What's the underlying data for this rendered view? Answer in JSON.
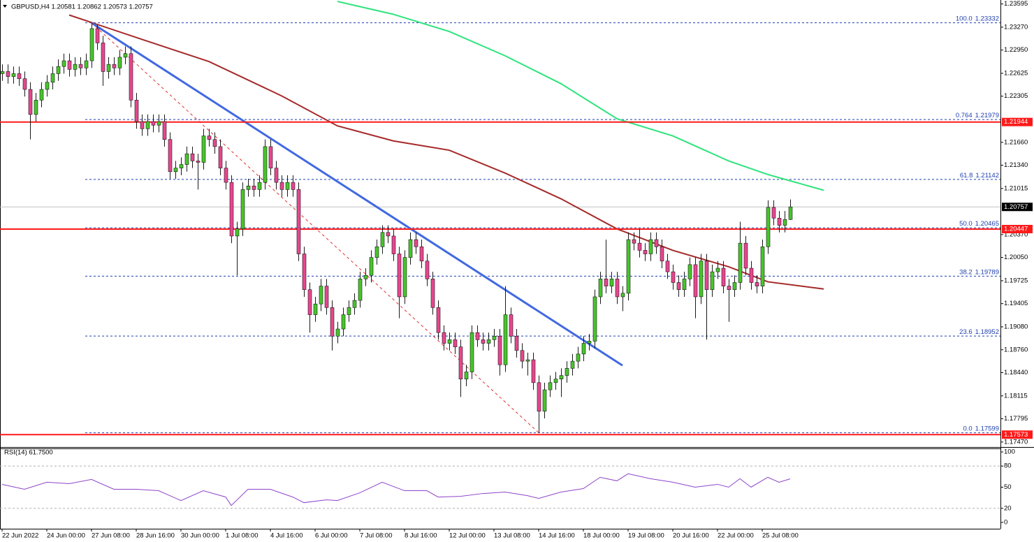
{
  "chart_data": [
    {
      "type": "candlestick",
      "title": "GBPUSD,H4  1.20581 1.20862 1.20573 1.20757",
      "up_color": "#47c52a",
      "down_color": "#e8468f",
      "ylim": [
        1.174,
        1.2365
      ],
      "yticks": [
        1.23595,
        {
          "value": 1.2327,
          "label": "1.23270"
        },
        {
          "value": 1.2295,
          "label": "1.22950"
        },
        1.22625,
        1.22305,
        {
          "value": 1.2166,
          "label": "1.21660"
        },
        {
          "value": 1.2134,
          "label": "1.21340"
        },
        1.21015,
        {
          "value": 1.2037,
          "label": "1.20370"
        },
        {
          "value": 1.2005,
          "label": "1.20050"
        },
        1.19725,
        1.19405,
        {
          "value": 1.1908,
          "label": "1.19080"
        },
        {
          "value": 1.1876,
          "label": "1.18760"
        },
        {
          "value": 1.1844,
          "label": "1.18440"
        },
        1.18115,
        1.17795,
        {
          "value": 1.1747,
          "label": "1.17470"
        }
      ],
      "open": [
        1.2262,
        1.2265,
        1.2258,
        1.2262,
        1.2255,
        1.224,
        1.2205,
        1.2225,
        1.224,
        1.225,
        1.2262,
        1.2272,
        1.228,
        1.2268,
        1.2275,
        1.227,
        1.228,
        1.2325,
        1.2305,
        1.2265,
        1.2275,
        1.227,
        1.2285,
        1.229,
        1.2225,
        1.2195,
        1.2185,
        1.2195,
        1.219,
        1.2195,
        1.217,
        1.2125,
        1.213,
        1.2135,
        1.215,
        1.214,
        1.2138,
        1.2175,
        1.217,
        1.216,
        1.213,
        1.211,
        1.2035,
        1.2045,
        1.21,
        1.2105,
        1.21,
        1.211,
        1.216,
        1.213,
        1.211,
        1.21,
        1.211,
        1.21,
        1.201,
        1.196,
        1.1925,
        1.194,
        1.1965,
        1.1935,
        1.1895,
        1.1905,
        1.1925,
        1.1935,
        1.1945,
        1.1975,
        1.198,
        1.2005,
        1.202,
        1.204,
        1.2035,
        1.201,
        1.195,
        1.2005,
        1.203,
        1.202,
        1.2,
        1.1975,
        1.1935,
        1.19,
        1.1885,
        1.189,
        1.188,
        1.1835,
        1.1845,
        1.19,
        1.189,
        1.1885,
        1.189,
        1.1895,
        1.1855,
        1.1925,
        1.1895,
        1.1875,
        1.186,
        1.1862,
        1.183,
        1.179,
        1.182,
        1.183,
        1.1835,
        1.184,
        1.185,
        1.186,
        1.187,
        1.1885,
        1.1888,
        1.195,
        1.1975,
        1.1965,
        1.1975,
        1.195,
        1.1955,
        1.203,
        1.2025,
        1.2015,
        1.201,
        1.203,
        1.202,
        1.2,
        1.1985,
        1.197,
        1.196,
        1.1975,
        1.1995,
        1.195,
        1.2,
        1.196,
        1.1985,
        1.199,
        1.1965,
        1.196,
        1.197,
        1.2025,
        1.199,
        1.197,
        1.1965,
        1.202,
        1.2075,
        1.206,
        1.205,
        1.20581
      ],
      "high": [
        1.2275,
        1.2275,
        1.2272,
        1.2272,
        1.2265,
        1.225,
        1.2235,
        1.225,
        1.226,
        1.2272,
        1.2282,
        1.229,
        1.229,
        1.2285,
        1.2285,
        1.229,
        1.2333,
        1.233,
        1.2315,
        1.2285,
        1.2285,
        1.2295,
        1.23,
        1.23,
        1.2235,
        1.2205,
        1.2205,
        1.2205,
        1.2205,
        1.2205,
        1.218,
        1.214,
        1.2145,
        1.216,
        1.216,
        1.215,
        1.2185,
        1.2185,
        1.218,
        1.217,
        1.214,
        1.212,
        1.2055,
        1.211,
        1.2115,
        1.2115,
        1.212,
        1.217,
        1.217,
        1.214,
        1.212,
        1.212,
        1.212,
        1.211,
        1.202,
        1.197,
        1.195,
        1.1975,
        1.1975,
        1.1945,
        1.1915,
        1.1935,
        1.1945,
        1.1955,
        1.1985,
        1.199,
        1.2015,
        1.203,
        1.205,
        1.205,
        1.2045,
        1.202,
        1.2015,
        1.204,
        1.204,
        1.203,
        1.201,
        1.1985,
        1.1945,
        1.191,
        1.19,
        1.19,
        1.189,
        1.1855,
        1.191,
        1.191,
        1.19,
        1.19,
        1.1905,
        1.1905,
        1.1965,
        1.1935,
        1.1905,
        1.1885,
        1.1872,
        1.1872,
        1.184,
        1.183,
        1.184,
        1.1845,
        1.185,
        1.186,
        1.187,
        1.188,
        1.1895,
        1.1898,
        1.196,
        1.1985,
        1.203,
        1.1985,
        1.1985,
        1.1965,
        1.204,
        1.204,
        1.2045,
        1.2025,
        1.204,
        1.204,
        1.203,
        1.201,
        1.1995,
        1.198,
        1.1985,
        1.2005,
        1.2005,
        1.201,
        1.201,
        1.1995,
        1.2,
        1.2,
        1.1975,
        1.198,
        1.2055,
        1.2035,
        1.2,
        1.198,
        1.203,
        1.2085,
        1.2085,
        1.207,
        1.207,
        1.20862
      ],
      "low": [
        1.2252,
        1.2248,
        1.2248,
        1.2245,
        1.223,
        1.217,
        1.2195,
        1.2215,
        1.223,
        1.224,
        1.2252,
        1.2262,
        1.2258,
        1.2258,
        1.226,
        1.226,
        1.227,
        1.2295,
        1.2245,
        1.2255,
        1.226,
        1.226,
        1.2275,
        1.2215,
        1.2185,
        1.2175,
        1.2175,
        1.218,
        1.218,
        1.216,
        1.2115,
        1.2115,
        1.212,
        1.2125,
        1.213,
        1.21,
        1.2128,
        1.216,
        1.215,
        1.212,
        1.21,
        1.2025,
        1.198,
        1.2035,
        1.209,
        1.209,
        1.209,
        1.21,
        1.212,
        1.21,
        1.209,
        1.209,
        1.209,
        1.2,
        1.195,
        1.19,
        1.1915,
        1.193,
        1.1925,
        1.1875,
        1.1885,
        1.1895,
        1.1915,
        1.1925,
        1.1935,
        1.1965,
        1.197,
        1.1995,
        1.201,
        1.2025,
        1.2,
        1.192,
        1.194,
        1.1995,
        1.201,
        1.199,
        1.1965,
        1.1925,
        1.189,
        1.1875,
        1.1875,
        1.187,
        1.181,
        1.1825,
        1.1835,
        1.188,
        1.1875,
        1.1875,
        1.188,
        1.184,
        1.1845,
        1.1885,
        1.1865,
        1.185,
        1.184,
        1.182,
        1.176,
        1.178,
        1.181,
        1.182,
        1.181,
        1.183,
        1.184,
        1.185,
        1.186,
        1.1875,
        1.1878,
        1.194,
        1.1955,
        1.1955,
        1.194,
        1.193,
        1.1945,
        1.2015,
        1.2005,
        1.2,
        1.2,
        1.201,
        1.199,
        1.1975,
        1.196,
        1.195,
        1.195,
        1.1965,
        1.192,
        1.194,
        1.189,
        1.195,
        1.1975,
        1.1955,
        1.1915,
        1.195,
        1.196,
        1.198,
        1.196,
        1.1955,
        1.1955,
        1.201,
        1.205,
        1.204,
        1.204,
        1.20573
      ],
      "close": [
        1.2265,
        1.2258,
        1.2262,
        1.2255,
        1.224,
        1.2205,
        1.2225,
        1.224,
        1.225,
        1.2262,
        1.2272,
        1.228,
        1.2268,
        1.2275,
        1.227,
        1.228,
        1.2325,
        1.2305,
        1.2265,
        1.2275,
        1.227,
        1.2285,
        1.229,
        1.2225,
        1.2195,
        1.2185,
        1.2195,
        1.219,
        1.2195,
        1.217,
        1.2125,
        1.213,
        1.2135,
        1.215,
        1.214,
        1.2138,
        1.2175,
        1.217,
        1.216,
        1.213,
        1.211,
        1.2035,
        1.2045,
        1.21,
        1.2105,
        1.21,
        1.211,
        1.216,
        1.213,
        1.211,
        1.21,
        1.211,
        1.21,
        1.201,
        1.196,
        1.1925,
        1.194,
        1.1965,
        1.1935,
        1.1895,
        1.1905,
        1.1925,
        1.1935,
        1.1945,
        1.1975,
        1.198,
        1.2005,
        1.202,
        1.204,
        1.2035,
        1.201,
        1.195,
        1.2005,
        1.203,
        1.202,
        1.2,
        1.1975,
        1.1935,
        1.19,
        1.1885,
        1.189,
        1.188,
        1.1835,
        1.1845,
        1.19,
        1.189,
        1.1885,
        1.189,
        1.1895,
        1.1855,
        1.1925,
        1.1895,
        1.1875,
        1.186,
        1.1862,
        1.183,
        1.179,
        1.182,
        1.183,
        1.1835,
        1.184,
        1.185,
        1.186,
        1.187,
        1.1885,
        1.1888,
        1.195,
        1.1975,
        1.1965,
        1.1975,
        1.195,
        1.1955,
        1.203,
        1.2025,
        1.2015,
        1.201,
        1.203,
        1.202,
        1.2,
        1.1985,
        1.197,
        1.196,
        1.1975,
        1.1995,
        1.195,
        1.2,
        1.196,
        1.1985,
        1.199,
        1.1965,
        1.196,
        1.197,
        1.2025,
        1.199,
        1.197,
        1.1965,
        1.202,
        1.2075,
        1.206,
        1.205,
        1.20581,
        1.20757
      ],
      "moving_averages": [
        {
          "color": "#a52a2a",
          "x": [
            12,
            25,
            37,
            50,
            60,
            70,
            80,
            90,
            100,
            110,
            120,
            130,
            137,
            147
          ],
          "values": [
            1.2344,
            1.231,
            1.2279,
            1.2231,
            1.2189,
            1.2168,
            1.2155,
            1.2123,
            1.2087,
            1.2045,
            1.2015,
            1.1992,
            1.1971,
            1.1961
          ]
        },
        {
          "color": "#2ee47c",
          "x": [
            60,
            70,
            80,
            90,
            100,
            110,
            120,
            130,
            137,
            147
          ],
          "values": [
            1.2363,
            1.2345,
            1.2321,
            1.2287,
            1.2248,
            1.2199,
            1.2175,
            1.214,
            1.2121,
            1.2099
          ]
        }
      ],
      "trendlines": [
        {
          "color": "#4169e1",
          "x": [
            16,
            111
          ],
          "values": [
            1.2333,
            1.1854
          ],
          "width": 3
        },
        {
          "color": "#e03030",
          "x": [
            16,
            96
          ],
          "values": [
            1.2333,
            1.176
          ],
          "width": 1,
          "dashed": true
        }
      ],
      "fibonacci": [
        {
          "level": "100.0",
          "value": 1.23332
        },
        {
          "level": "0.764",
          "value": 1.21979
        },
        {
          "level": "61.8",
          "value": 1.21142
        },
        {
          "level": "50.0",
          "value": 1.20465
        },
        {
          "level": "38.2",
          "value": 1.19789
        },
        {
          "level": "23.6",
          "value": 1.18952
        },
        {
          "level": "0.0",
          "value": 1.17599
        }
      ],
      "fib_color": "#1e3fae",
      "levels": [
        1.21944,
        1.20447,
        1.17573
      ],
      "level_color": "#ff1a1a",
      "current_price": 1.20757
    },
    {
      "type": "line",
      "title": "RSI(14) 61.7500",
      "color": "#8e44c9",
      "ylim": [
        -9,
        106
      ],
      "yticks": [
        100,
        80,
        50,
        20,
        0
      ],
      "levels": [
        80,
        20
      ],
      "x": [
        0,
        4,
        8,
        12,
        16,
        20,
        24,
        28,
        32,
        36,
        40,
        41,
        44,
        48,
        52,
        54,
        58,
        60,
        64,
        68,
        72,
        76,
        78,
        82,
        86,
        90,
        94,
        96,
        100,
        104,
        107,
        110,
        112,
        116,
        120,
        124,
        128,
        130,
        132,
        134,
        137,
        139,
        141
      ],
      "values": [
        54,
        47,
        57,
        55,
        61,
        47,
        47,
        45,
        31,
        45,
        36,
        24,
        47,
        47,
        36,
        28,
        32,
        31,
        42,
        57,
        45,
        45,
        36,
        37,
        41,
        43,
        38,
        34,
        43,
        48,
        64,
        59,
        69,
        62,
        57,
        50,
        54,
        50,
        62,
        50,
        64,
        57,
        61.75
      ],
      "time_labels": [
        "22 Jun 2022",
        "24 Jun 00:00",
        "27 Jun 08:00",
        "28 Jun 16:00",
        "30 Jun 00:00",
        "1 Jul 08:00",
        "4 Jul 16:00",
        "6 Jul 00:00",
        "7 Jul 08:00",
        "8 Jul 16:00",
        "12 Jul 00:00",
        "13 Jul 08:00",
        "14 Jul 16:00",
        "18 Jul 00:00",
        "19 Jul 08:00",
        "20 Jul 16:00",
        "22 Jul 00:00",
        "25 Jul 08:00"
      ]
    }
  ]
}
